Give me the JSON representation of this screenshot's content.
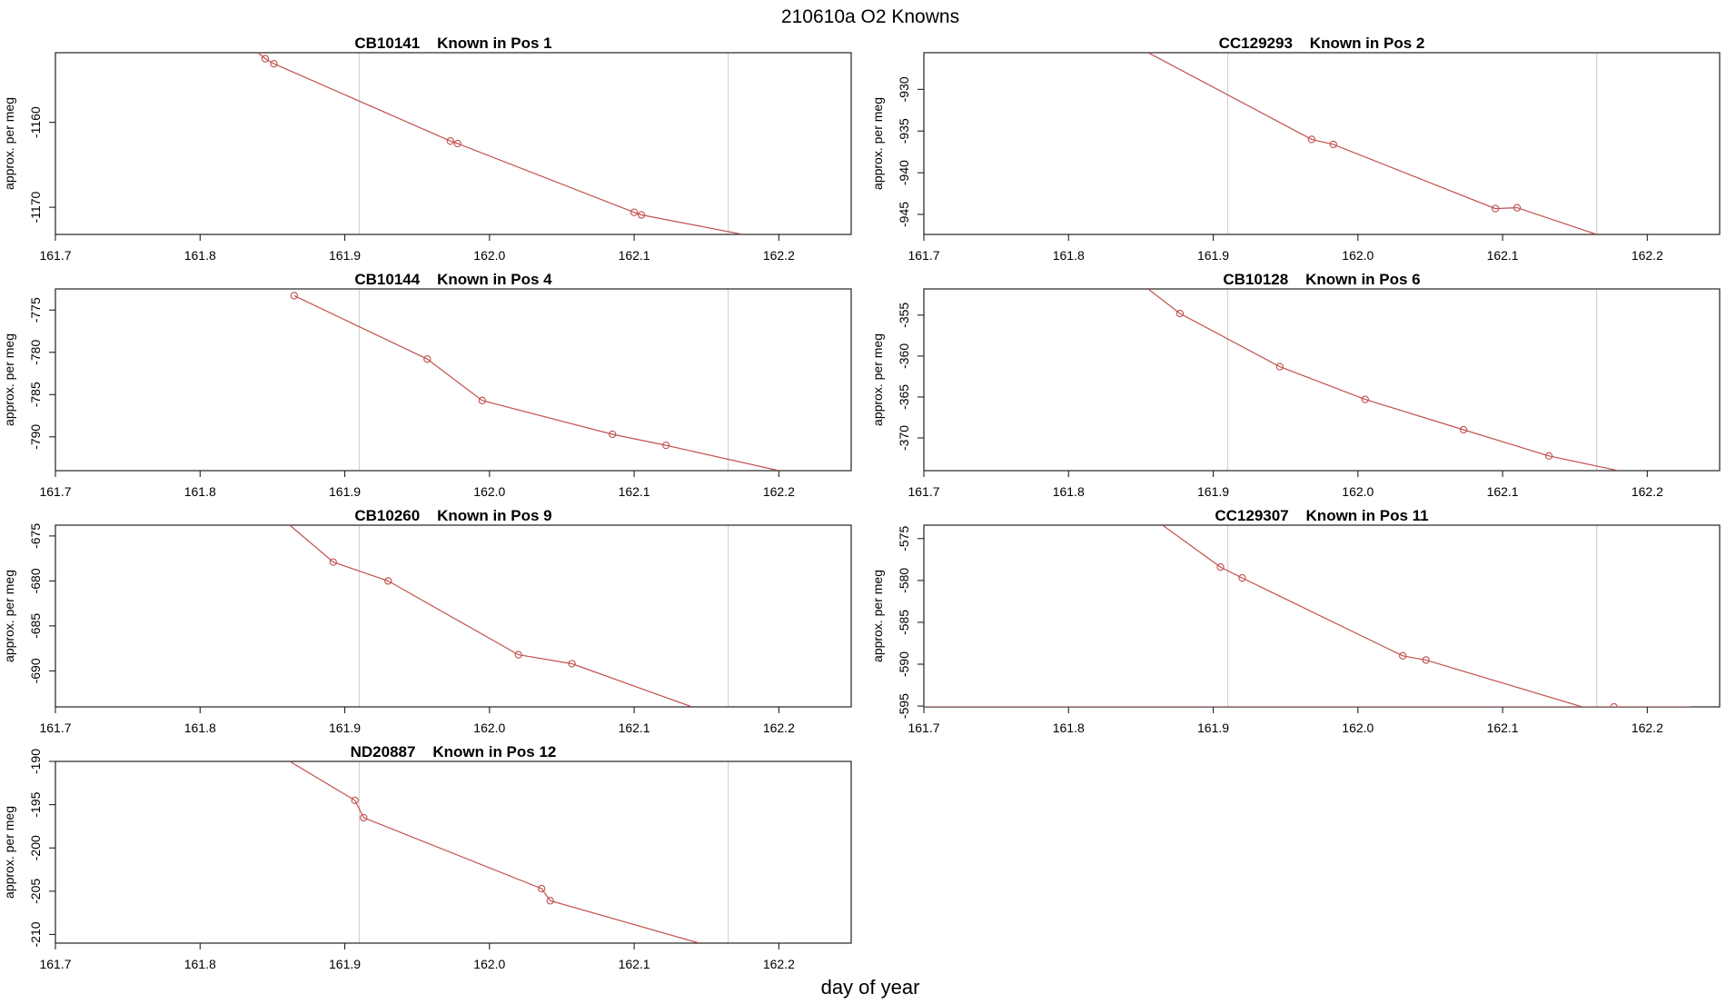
{
  "figure": {
    "title": "210610a   O2 Knowns",
    "xlabel": "day of year",
    "ylabel": "approx. per meg"
  },
  "colors": {
    "series": "#c0504d",
    "axis": "#222222",
    "vline": "#d3d3d3",
    "text": "#000000"
  },
  "chart_data": [
    {
      "type": "line",
      "title": "CB10141    Known in Pos 1",
      "xlabel": "",
      "ylabel": "approx. per meg",
      "xlim": [
        161.7,
        162.25
      ],
      "ylim": [
        -1173.2,
        -1151.8
      ],
      "xticks": [
        "161.7",
        "161.8",
        "161.9",
        "162.0",
        "162.1",
        "162.2"
      ],
      "yticks": [
        "-1160",
        "-1170"
      ],
      "vlines": [
        161.91,
        162.165
      ],
      "line_x": [
        161.84,
        161.845,
        161.851,
        161.973,
        161.978,
        162.1,
        162.105,
        162.175
      ],
      "line_y": [
        -1151.8,
        -1152.5,
        -1153.1,
        -1162.2,
        -1162.5,
        -1170.6,
        -1170.9,
        -1173.2
      ],
      "points_x": [
        161.845,
        161.851,
        161.973,
        161.978,
        162.1,
        162.105
      ],
      "points_y": [
        -1152.5,
        -1153.1,
        -1162.2,
        -1162.5,
        -1170.6,
        -1170.9
      ]
    },
    {
      "type": "line",
      "title": "CC129293    Known in Pos 2",
      "xlabel": "",
      "ylabel": "approx. per meg",
      "xlim": [
        161.7,
        162.25
      ],
      "ylim": [
        -947.4,
        -925.6
      ],
      "xticks": [
        "161.7",
        "161.8",
        "161.9",
        "162.0",
        "162.1",
        "162.2"
      ],
      "yticks": [
        "-930",
        "-935",
        "-940",
        "-945"
      ],
      "vlines": [
        161.91,
        162.165
      ],
      "line_x": [
        161.855,
        161.968,
        161.983,
        162.095,
        162.11,
        162.165
      ],
      "line_y": [
        -925.6,
        -936.0,
        -936.6,
        -944.3,
        -944.2,
        -947.4
      ],
      "points_x": [
        161.968,
        161.983,
        162.095,
        162.11
      ],
      "points_y": [
        -936.0,
        -936.6,
        -944.3,
        -944.2
      ]
    },
    {
      "type": "line",
      "title": "CB10144    Known in Pos 4",
      "xlabel": "",
      "ylabel": "approx. per meg",
      "xlim": [
        161.7,
        162.25
      ],
      "ylim": [
        -794.0,
        -772.5
      ],
      "xticks": [
        "161.7",
        "161.8",
        "161.9",
        "162.0",
        "162.1",
        "162.2"
      ],
      "yticks": [
        "-775",
        "-780",
        "-785",
        "-790"
      ],
      "vlines": [
        161.91,
        162.165
      ],
      "line_x": [
        161.865,
        161.957,
        161.995,
        162.085,
        162.122,
        162.2
      ],
      "line_y": [
        -773.3,
        -780.8,
        -785.7,
        -789.7,
        -791.0,
        -794.0
      ],
      "points_x": [
        161.865,
        161.957,
        161.995,
        162.085,
        162.122
      ],
      "points_y": [
        -773.3,
        -780.8,
        -785.7,
        -789.7,
        -791.0
      ]
    },
    {
      "type": "line",
      "title": "CB10128    Known in Pos 6",
      "xlabel": "",
      "ylabel": "approx. per meg",
      "xlim": [
        161.7,
        162.25
      ],
      "ylim": [
        -374.0,
        -351.8
      ],
      "xticks": [
        "161.7",
        "161.8",
        "161.9",
        "162.0",
        "162.1",
        "162.2"
      ],
      "yticks": [
        "-355",
        "-360",
        "-365",
        "-370"
      ],
      "vlines": [
        161.91,
        162.165
      ],
      "line_x": [
        161.855,
        161.877,
        161.946,
        162.005,
        162.073,
        162.132,
        162.18
      ],
      "line_y": [
        -351.8,
        -354.8,
        -361.3,
        -365.3,
        -369.0,
        -372.2,
        -374.0
      ],
      "points_x": [
        161.877,
        161.946,
        162.005,
        162.073,
        162.132
      ],
      "points_y": [
        -354.8,
        -361.3,
        -365.3,
        -369.0,
        -372.2
      ]
    },
    {
      "type": "line",
      "title": "CB10260    Known in Pos 9",
      "xlabel": "",
      "ylabel": "approx. per meg",
      "xlim": [
        161.7,
        162.25
      ],
      "ylim": [
        -694.0,
        -673.8
      ],
      "xticks": [
        "161.7",
        "161.8",
        "161.9",
        "162.0",
        "162.1",
        "162.2"
      ],
      "yticks": [
        "-675",
        "-680",
        "-685",
        "-690"
      ],
      "vlines": [
        161.91,
        162.165
      ],
      "line_x": [
        161.862,
        161.892,
        161.93,
        162.02,
        162.057,
        162.14
      ],
      "line_y": [
        -673.8,
        -677.9,
        -680.0,
        -688.2,
        -689.2,
        -694.0
      ],
      "points_x": [
        161.892,
        161.93,
        162.02,
        162.057
      ],
      "points_y": [
        -677.9,
        -680.0,
        -688.2,
        -689.2
      ]
    },
    {
      "type": "line",
      "title": "CC129307    Known in Pos 11",
      "xlabel": "",
      "ylabel": "approx. per meg",
      "xlim": [
        161.7,
        162.25
      ],
      "ylim": [
        -595.1,
        -573.4
      ],
      "xticks": [
        "161.7",
        "161.8",
        "161.9",
        "162.0",
        "162.1",
        "162.2"
      ],
      "yticks": [
        "-575",
        "-580",
        "-585",
        "-590",
        "-595"
      ],
      "vlines": [
        161.91,
        162.165
      ],
      "line_x": [
        161.865,
        161.905,
        161.92,
        162.031,
        162.047,
        162.155
      ],
      "line_y": [
        -573.4,
        -578.4,
        -579.7,
        -589.0,
        -589.5,
        -595.1
      ],
      "points_x": [
        161.905,
        161.92,
        162.031,
        162.047,
        162.177
      ],
      "points_y": [
        -578.4,
        -579.7,
        -589.0,
        -589.5,
        -595.1
      ],
      "hline_x": [
        161.7,
        162.23
      ],
      "hline_y": -595.1
    },
    {
      "type": "line",
      "title": "ND20887    Known in Pos 12",
      "xlabel": "",
      "ylabel": "approx. per meg",
      "xlim": [
        161.7,
        162.25
      ],
      "ylim": [
        -211.0,
        -190.0
      ],
      "xticks": [
        "161.7",
        "161.8",
        "161.9",
        "162.0",
        "162.1",
        "162.2"
      ],
      "yticks": [
        "-190",
        "-195",
        "-200",
        "-205",
        "-210"
      ],
      "vlines": [
        161.91,
        162.165
      ],
      "line_x": [
        161.862,
        161.907,
        161.913,
        162.036,
        162.042,
        162.145
      ],
      "line_y": [
        -190.0,
        -194.5,
        -196.5,
        -204.7,
        -206.1,
        -211.0
      ],
      "points_x": [
        161.907,
        161.913,
        162.036,
        162.042
      ],
      "points_y": [
        -194.5,
        -196.5,
        -204.7,
        -206.1
      ]
    }
  ]
}
